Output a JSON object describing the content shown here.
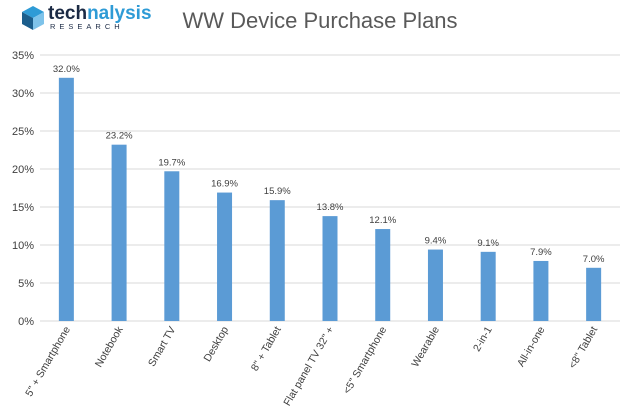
{
  "brand": {
    "name_part1": "tech",
    "name_part2": "nalysis",
    "tagline": "RESEARCH",
    "color_dark": "#1b2a44",
    "color_accent": "#2e9bd6"
  },
  "chart_data": {
    "type": "bar",
    "title": "WW Device Purchase Plans",
    "xlabel": "",
    "ylabel": "",
    "ylim": [
      0,
      35
    ],
    "yticks": [
      0,
      5,
      10,
      15,
      20,
      25,
      30,
      35
    ],
    "ytick_labels": [
      "0%",
      "5%",
      "10%",
      "15%",
      "20%",
      "25%",
      "30%",
      "35%"
    ],
    "grid": true,
    "categories": [
      "5\" + Smartphone",
      "Notebook",
      "Smart TV",
      "Desktop",
      "8\" + Tablet",
      "Flat panel TV 32\" +",
      "<5\" Smartphone",
      "Wearable",
      "2-in-1",
      "All-in-one",
      "<8\" Tablet"
    ],
    "values": [
      32.0,
      23.2,
      19.7,
      16.9,
      15.9,
      13.8,
      12.1,
      9.4,
      9.1,
      7.9,
      7.0
    ],
    "data_labels": [
      "32.0%",
      "23.2%",
      "19.7%",
      "16.9%",
      "15.9%",
      "13.8%",
      "12.1%",
      "9.4%",
      "9.1%",
      "7.9%",
      "7.0%"
    ],
    "bar_color": "#5b9bd5",
    "grid_color": "#d9d9d9",
    "text_color": "#404040"
  }
}
